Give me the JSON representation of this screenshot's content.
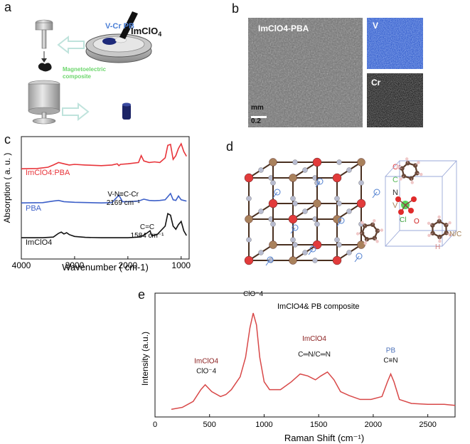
{
  "figure": {
    "panels": {
      "a": {
        "letter": "a",
        "label_vcrpb": "V-Cr PB",
        "label_imclo4": "ImClO",
        "label_imclo4_sub": "4",
        "label_composite_1": "Magnetoelectric",
        "label_composite_2": "composite"
      },
      "b": {
        "letter": "b",
        "sem_label": "ImClO4-PBA",
        "map_v": "V",
        "map_cr": "Cr",
        "scale_top": "mm",
        "scale_bottom": "0.2"
      },
      "c": {
        "letter": "c"
      },
      "d": {
        "letter": "d",
        "legend": {
          "cr": "Cr",
          "c": "C",
          "n": "N",
          "v": "V"
        },
        "molecule_labels": {
          "cl": "Cl",
          "o": "O",
          "nc": "N/C",
          "h": "H"
        }
      },
      "e": {
        "letter": "e"
      }
    },
    "colors": {
      "red": "#e8343a",
      "blue": "#3c5fc8",
      "black": "#111111",
      "cr": "#e23b3b",
      "c": "#58b858",
      "n": "#333333",
      "v": "#a9815c",
      "raman": "#d84848",
      "pb_blue": "#4a6fb8",
      "ann_dark_red": "#8b2020"
    }
  },
  "chart_data": [
    {
      "panel": "c",
      "type": "line",
      "xlabel": "Wavenumber ( cm-1)",
      "ylabel": "Absorption ( a. u. )",
      "x_ticks": [
        4000,
        3000,
        2000,
        1000
      ],
      "xlim": [
        4000,
        850
      ],
      "x_reversed": true,
      "series": [
        {
          "name": "ImClO4:PBA",
          "color": "#e8343a",
          "x": [
            4000,
            3700,
            3500,
            3400,
            3300,
            3200,
            3100,
            3000,
            2800,
            2500,
            2300,
            2200,
            2169,
            2140,
            2000,
            1800,
            1750,
            1700,
            1600,
            1500,
            1400,
            1300,
            1250,
            1200,
            1150,
            1100,
            1050,
            1000,
            950,
            900
          ],
          "y": [
            0.2,
            0.21,
            0.25,
            0.32,
            0.4,
            0.36,
            0.32,
            0.34,
            0.32,
            0.3,
            0.32,
            0.36,
            0.3,
            0.34,
            0.36,
            0.4,
            0.62,
            0.45,
            0.4,
            0.42,
            0.4,
            0.55,
            0.95,
            0.98,
            0.5,
            0.62,
            0.85,
            1.0,
            0.75,
            0.6
          ]
        },
        {
          "name": "PBA",
          "color": "#3c5fc8",
          "x": [
            4000,
            3600,
            3400,
            3300,
            3200,
            3000,
            2500,
            2300,
            2169,
            2100,
            2000,
            1800,
            1700,
            1600,
            1500,
            1400,
            1300,
            1200,
            1150,
            1100,
            1050,
            1000,
            950,
            900
          ],
          "y": [
            0.2,
            0.21,
            0.26,
            0.28,
            0.24,
            0.22,
            0.2,
            0.21,
            0.45,
            0.24,
            0.24,
            0.26,
            0.32,
            0.28,
            0.27,
            0.28,
            0.3,
            0.5,
            0.3,
            0.28,
            0.42,
            0.3,
            0.28,
            0.26
          ]
        },
        {
          "name": "ImClO4",
          "color": "#111111",
          "x": [
            4000,
            3600,
            3400,
            3300,
            3250,
            3200,
            3150,
            3100,
            3000,
            2800,
            2500,
            2000,
            1800,
            1700,
            1584,
            1550,
            1450,
            1300,
            1250,
            1200,
            1150,
            1100,
            1050,
            1000,
            950,
            900
          ],
          "y": [
            0.18,
            0.18,
            0.2,
            0.32,
            0.36,
            0.3,
            0.34,
            0.28,
            0.22,
            0.19,
            0.18,
            0.18,
            0.2,
            0.26,
            0.4,
            0.24,
            0.28,
            0.55,
            0.95,
            0.9,
            0.55,
            0.45,
            0.6,
            0.7,
            0.4,
            0.25
          ]
        }
      ],
      "annotations": [
        {
          "text": "V-N≡C-Cr",
          "text2": "2169 cm⁻¹"
        },
        {
          "text": "C=C",
          "text2": "1584 cm⁻¹"
        }
      ]
    },
    {
      "panel": "e",
      "type": "line",
      "title": "ImClO4& PB composite",
      "xlabel": "Raman Shift (cm⁻¹)",
      "ylabel": "Intensity (a.u.)",
      "x_ticks": [
        0,
        500,
        1000,
        1500,
        2000,
        2500
      ],
      "xlim": [
        0,
        2750
      ],
      "series": [
        {
          "name": "",
          "color": "#d84848",
          "x": [
            150,
            250,
            350,
            420,
            460,
            520,
            600,
            650,
            700,
            780,
            830,
            870,
            900,
            930,
            960,
            1000,
            1050,
            1150,
            1250,
            1330,
            1400,
            1470,
            1520,
            1580,
            1640,
            1700,
            1780,
            1880,
            1980,
            2080,
            2130,
            2160,
            2190,
            2240,
            2350,
            2500,
            2650,
            2750
          ],
          "y": [
            0.02,
            0.04,
            0.1,
            0.22,
            0.27,
            0.2,
            0.15,
            0.17,
            0.22,
            0.35,
            0.55,
            0.85,
            1.0,
            0.88,
            0.55,
            0.3,
            0.22,
            0.22,
            0.3,
            0.38,
            0.36,
            0.32,
            0.36,
            0.4,
            0.32,
            0.2,
            0.16,
            0.12,
            0.12,
            0.15,
            0.3,
            0.38,
            0.3,
            0.12,
            0.08,
            0.07,
            0.07,
            0.06
          ]
        }
      ],
      "annotations": [
        {
          "line1": "ImClO4",
          "line2": "ClO⁻4"
        },
        {
          "line1": "ImClO4",
          "line2": "ClO⁻4"
        },
        {
          "line1": "ImClO4",
          "line2": "C═N/C═N"
        },
        {
          "line1": "PB",
          "line2": "C≡N"
        }
      ]
    }
  ]
}
